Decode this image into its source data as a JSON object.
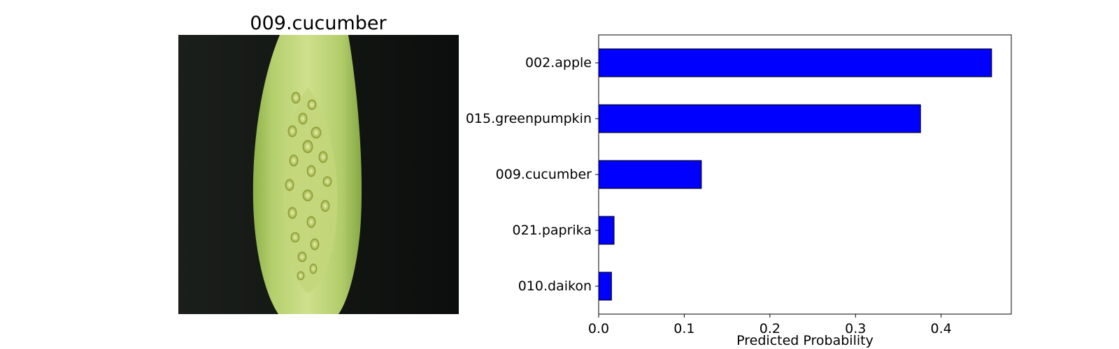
{
  "image_panel": {
    "title": "009.cucumber",
    "image_subject": "cucumber-slice"
  },
  "chart_data": {
    "type": "bar",
    "orientation": "horizontal",
    "categories": [
      "002.apple",
      "015.greenpumpkin",
      "009.cucumber",
      "021.paprika",
      "010.daikon"
    ],
    "values": [
      0.459,
      0.376,
      0.12,
      0.018,
      0.015
    ],
    "title": "",
    "xlabel": "Predicted Probability",
    "ylabel": "",
    "xlim": [
      0,
      0.482
    ],
    "xticks": [
      0.0,
      0.1,
      0.2,
      0.3,
      0.4
    ],
    "xtick_labels": [
      "0.0",
      "0.1",
      "0.2",
      "0.3",
      "0.4"
    ],
    "grid": false,
    "bar_color": "#0000ff",
    "bar_edge_color": "#000000"
  }
}
